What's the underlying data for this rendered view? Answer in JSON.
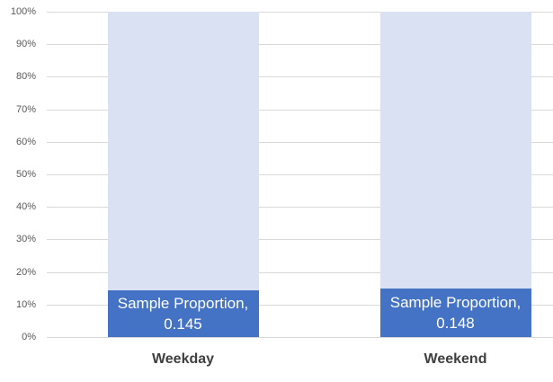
{
  "chart_data": {
    "type": "bar",
    "subtype": "percent-stacked-column",
    "title": "",
    "categories": [
      "Weekday",
      "Weekend"
    ],
    "series": [
      {
        "name": "Sample Proportion",
        "values": [
          0.145,
          0.148
        ],
        "color": "#4472C4",
        "label_color": "#FFFFFF",
        "data_labels": [
          {
            "line1": "Sample Proportion,",
            "line2": "0.145"
          },
          {
            "line1": "Sample Proportion,",
            "line2": "0.148"
          }
        ]
      },
      {
        "name": "",
        "values": [
          0.855,
          0.852
        ],
        "color": "#D9E1F2",
        "data_labels": [
          {
            "line1": "",
            "line2": ""
          },
          {
            "line1": "",
            "line2": ""
          }
        ]
      }
    ],
    "y_axis": {
      "min": 0,
      "max": 1,
      "ticks": [
        "0%",
        "10%",
        "20%",
        "30%",
        "40%",
        "50%",
        "60%",
        "70%",
        "80%",
        "90%",
        "100%"
      ],
      "grid": true
    },
    "legend": "none",
    "colors": {
      "gridline": "#D9D9D9",
      "tick_label": "#595959",
      "category_label": "#3F3F3F",
      "background": "#FFFFFF"
    }
  }
}
